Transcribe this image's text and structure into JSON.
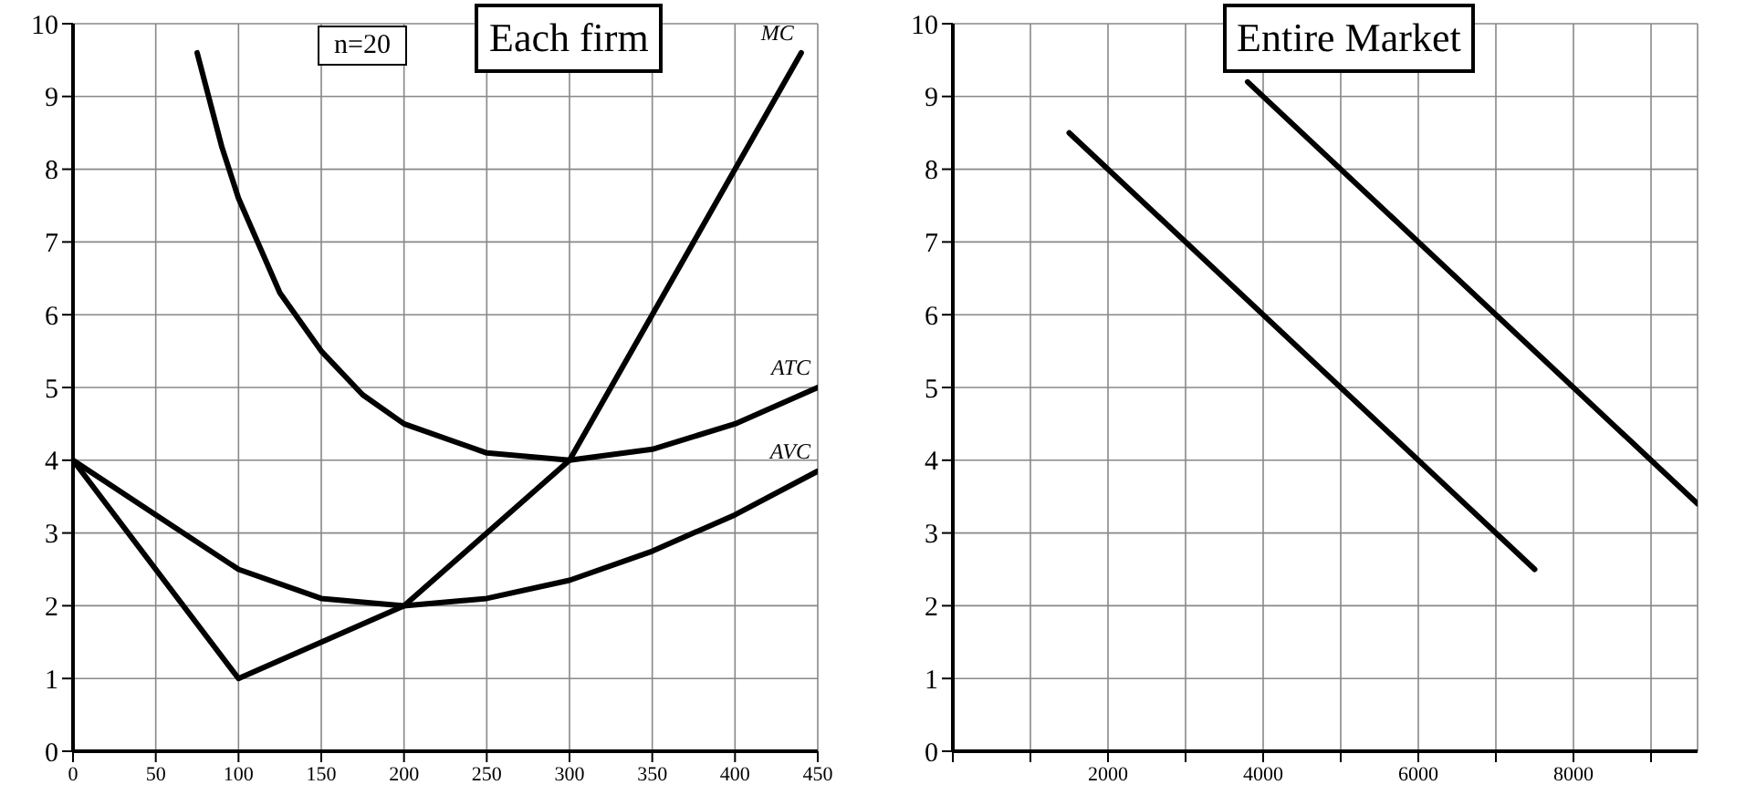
{
  "chart_data": [
    {
      "type": "line",
      "title": "Each firm",
      "annotations": [
        "n=20"
      ],
      "xlim": [
        0,
        450
      ],
      "xticks": [
        0,
        50,
        100,
        150,
        200,
        250,
        300,
        350,
        400,
        450
      ],
      "ylim": [
        0,
        10
      ],
      "yticks": [
        0,
        1,
        2,
        3,
        4,
        5,
        6,
        7,
        8,
        9,
        10
      ],
      "grid": true,
      "legend": false,
      "marker": "none",
      "line_style": "solid",
      "series": [
        {
          "name": "MC",
          "color": "#000000",
          "x": [
            0,
            100,
            200,
            300,
            440
          ],
          "values": [
            4,
            1,
            2,
            4,
            9.6
          ]
        },
        {
          "name": "ATC",
          "color": "#000000",
          "x": [
            75,
            90,
            100,
            125,
            150,
            175,
            200,
            250,
            300,
            350,
            400,
            450
          ],
          "values": [
            9.6,
            8.3,
            7.6,
            6.3,
            5.5,
            4.9,
            4.5,
            4.1,
            4,
            4.15,
            4.5,
            5
          ]
        },
        {
          "name": "AVC",
          "color": "#000000",
          "x": [
            0,
            50,
            100,
            150,
            200,
            250,
            300,
            350,
            400,
            450
          ],
          "values": [
            4,
            3.25,
            2.5,
            2.1,
            2,
            2.1,
            2.35,
            2.75,
            3.25,
            3.85
          ]
        }
      ]
    },
    {
      "type": "line",
      "title": "Entire Market",
      "xlim": [
        0,
        9600
      ],
      "xticks": [
        {
          "value": 0,
          "label": null
        },
        {
          "value": 1000,
          "label": null
        },
        2000,
        {
          "value": 3000,
          "label": null
        },
        4000,
        {
          "value": 5000,
          "label": null
        },
        6000,
        {
          "value": 7000,
          "label": null
        },
        8000,
        {
          "value": 9000,
          "label": null
        }
      ],
      "ylim": [
        0,
        10
      ],
      "yticks": [
        0,
        1,
        2,
        3,
        4,
        5,
        6,
        7,
        8,
        9,
        10
      ],
      "grid": true,
      "legend": false,
      "marker": "none",
      "line_style": "solid",
      "series": [
        {
          "color": "#000000",
          "x": [
            1500,
            7500
          ],
          "values": [
            8.5,
            2.5
          ]
        },
        {
          "color": "#000000",
          "x": [
            3800,
            9600
          ],
          "values": [
            9.2,
            3.4
          ]
        }
      ]
    }
  ]
}
